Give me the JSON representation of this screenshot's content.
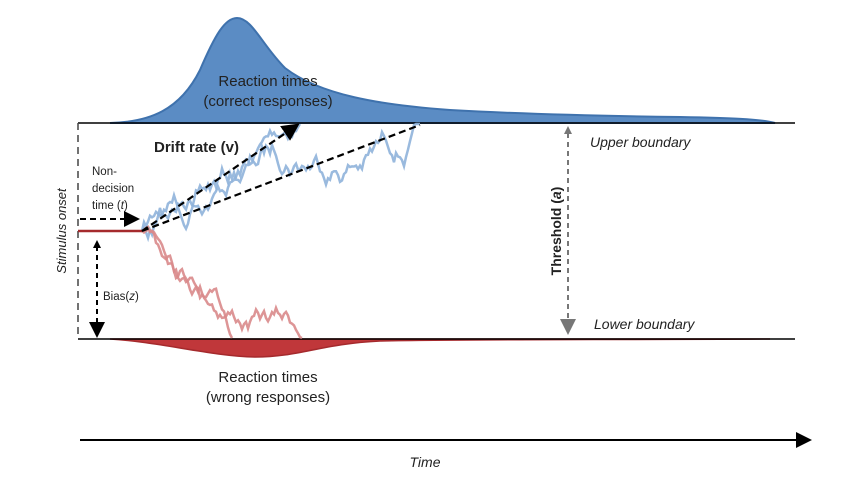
{
  "labels": {
    "rt_correct_1": "Reaction times",
    "rt_correct_2": "(correct responses)",
    "rt_wrong_1": "Reaction times",
    "rt_wrong_2": "(wrong responses)",
    "drift_rate": "Drift rate (v)",
    "non_decision_1": "Non-",
    "non_decision_2": "decision",
    "non_decision_3": "time (",
    "non_decision_var": "t",
    "non_decision_end": ")",
    "bias": "Bias(",
    "bias_var": "z",
    "bias_end": ")",
    "stimulus_onset": "Stimulus onset",
    "threshold": "Threshold (",
    "threshold_var": "a",
    "threshold_end": ")",
    "upper_boundary": "Upper boundary",
    "lower_boundary": "Lower boundary",
    "time": "Time"
  },
  "colors": {
    "correct": "#5b8cc4",
    "correct_walk": "#8fb3da",
    "wrong": "#c0373a",
    "wrong_walk": "#d98a8b",
    "threshold_arrow": "#777777"
  }
}
